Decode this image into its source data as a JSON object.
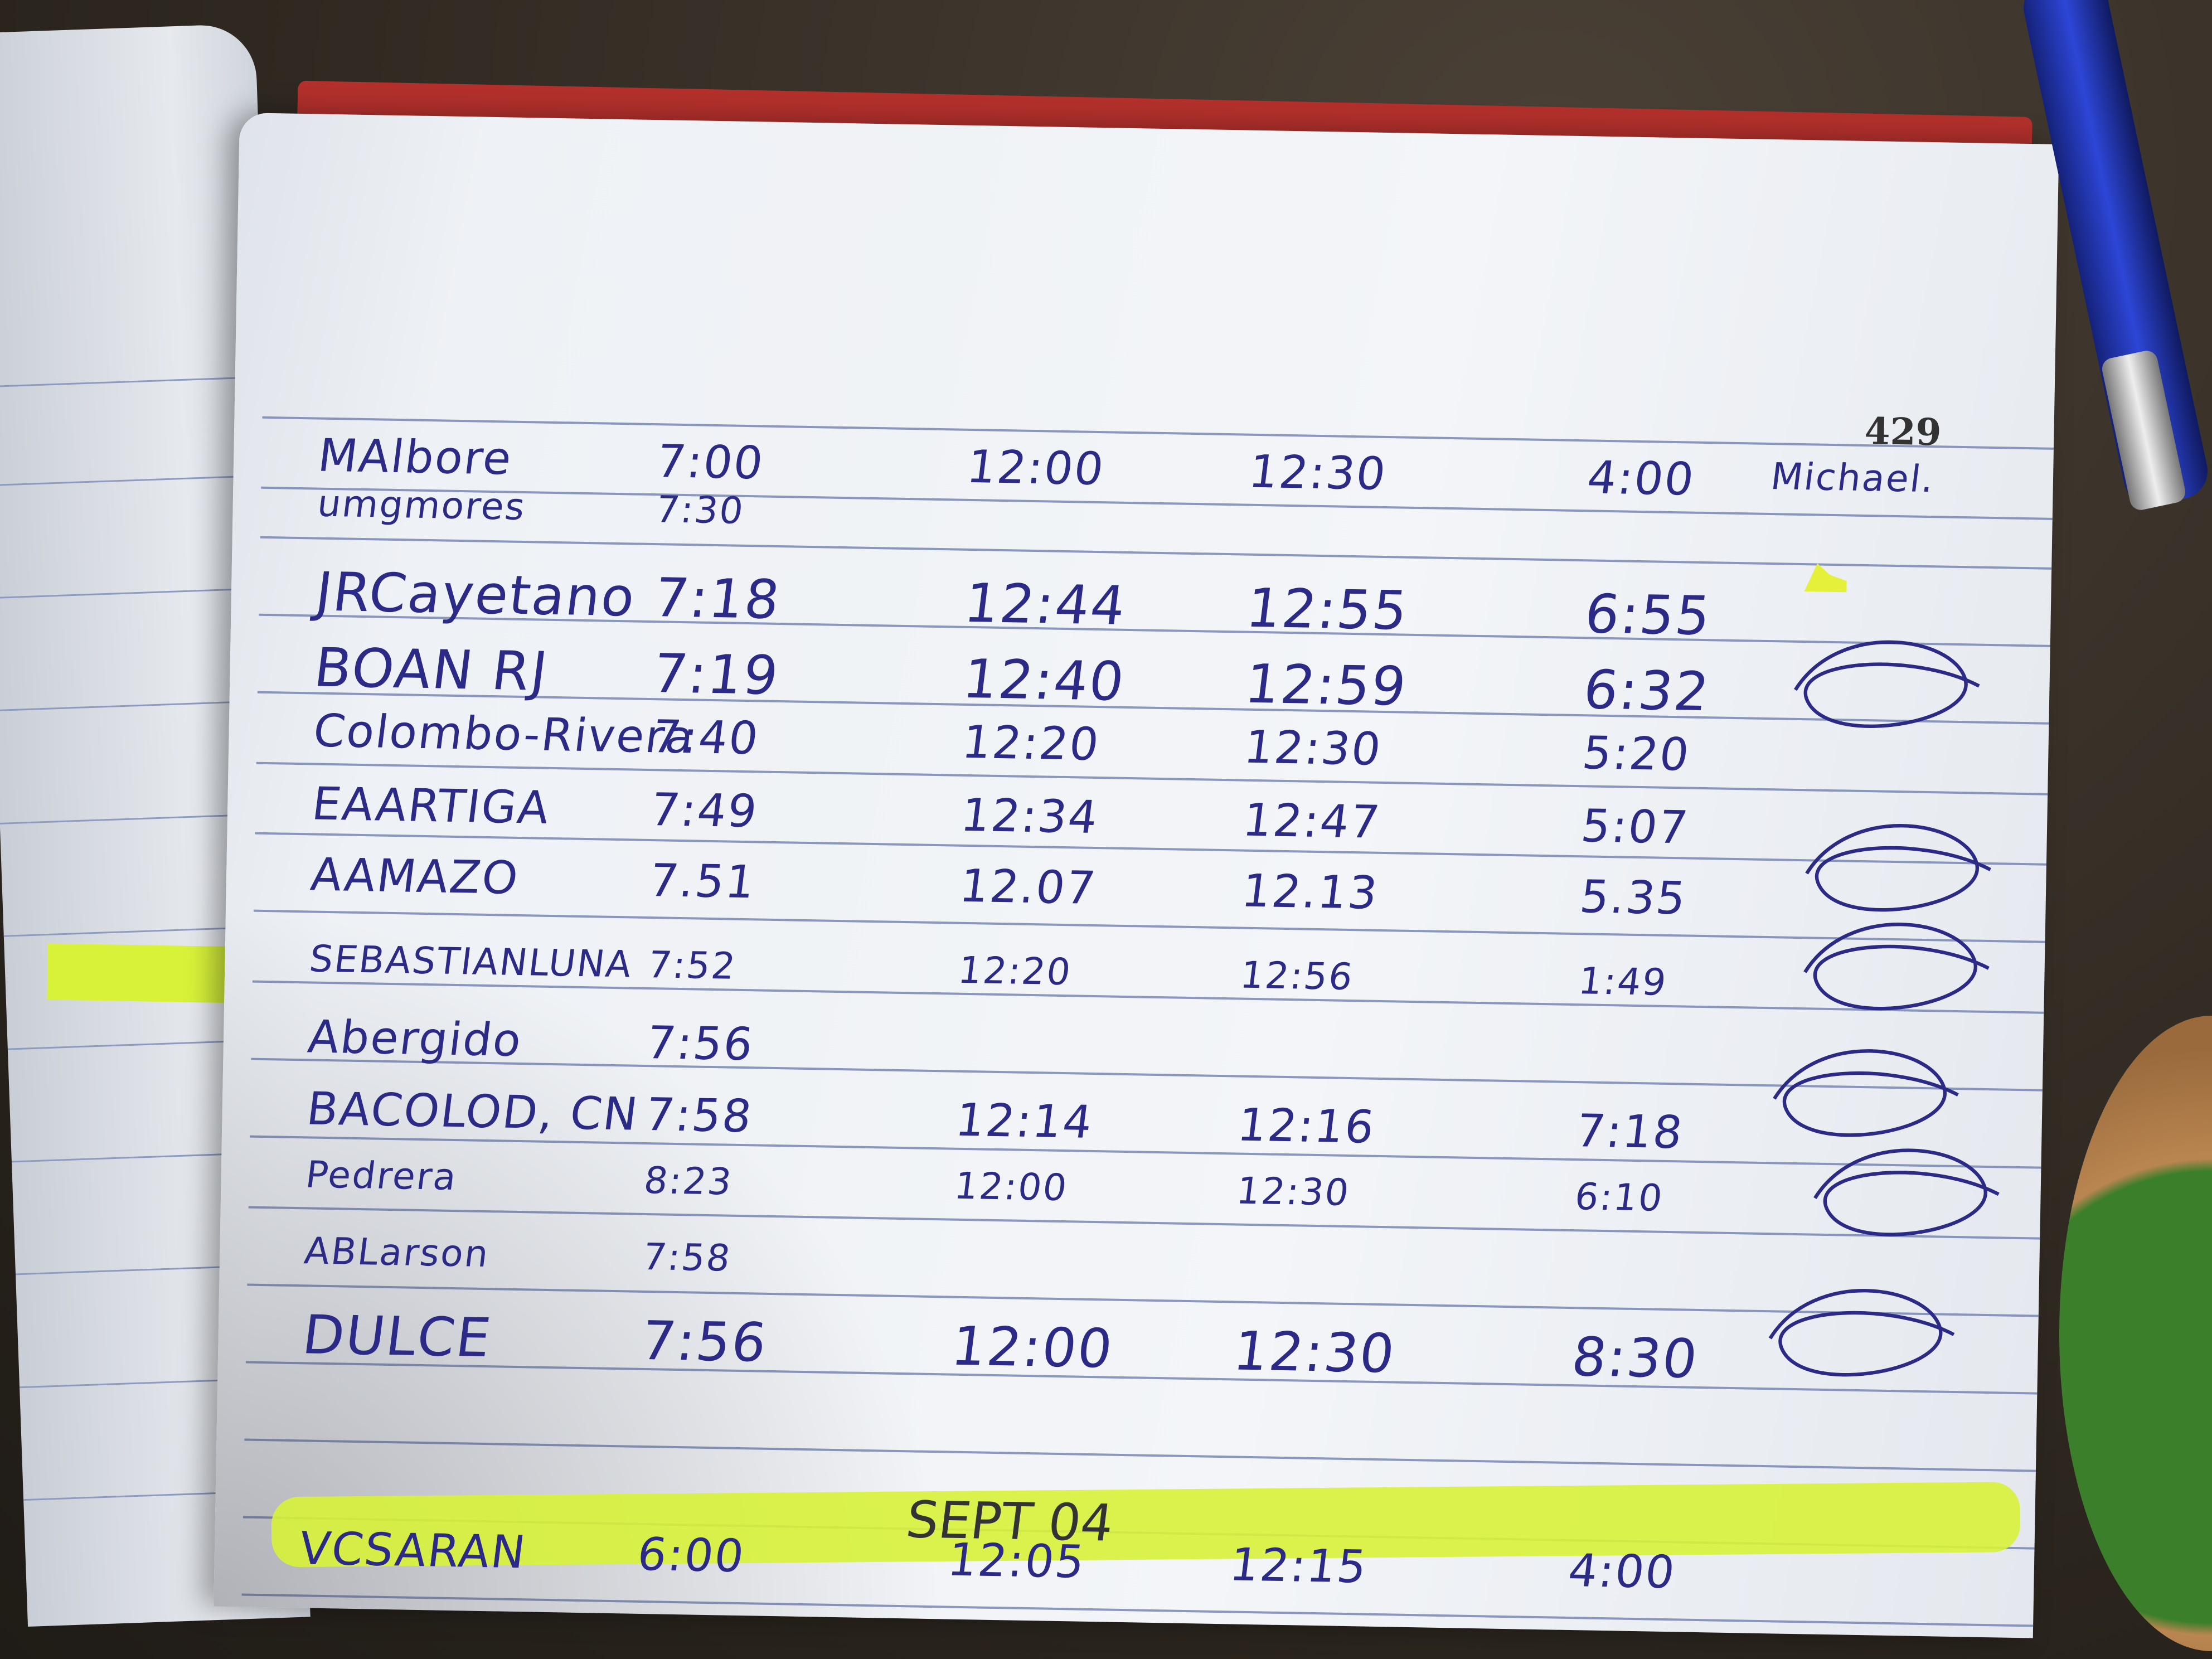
{
  "page_number": "429",
  "rows": [
    {
      "name": "MAlbore",
      "in": "7:00",
      "out_lunch": "12:00",
      "in_lunch": "12:30",
      "out": "4:00",
      "signature": "Michael."
    },
    {
      "name": "umgmores",
      "in": "7:30",
      "out_lunch": "",
      "in_lunch": "",
      "out": "",
      "signature": ""
    },
    {
      "name": "JRCayetano",
      "in": "7:18",
      "out_lunch": "12:44",
      "in_lunch": "12:55",
      "out": "6:55",
      "signature": ""
    },
    {
      "name": "BOAN RJ",
      "in": "7:19",
      "out_lunch": "12:40",
      "in_lunch": "12:59",
      "out": "6:32",
      "signature": ""
    },
    {
      "name": "Colombo-Rivera",
      "in": "7:40",
      "out_lunch": "12:20",
      "in_lunch": "12:30",
      "out": "5:20",
      "signature": ""
    },
    {
      "name": "EAARTIGA",
      "in": "7:49",
      "out_lunch": "12:34",
      "in_lunch": "12:47",
      "out": "5:07",
      "signature": ""
    },
    {
      "name": "AAMAZO",
      "in": "7.51",
      "out_lunch": "12.07",
      "in_lunch": "12.13",
      "out": "5.35",
      "signature": ""
    },
    {
      "name": "SEBASTIANLUNA",
      "in": "7:52",
      "out_lunch": "12:20",
      "in_lunch": "12:56",
      "out": "1:49",
      "signature": ""
    },
    {
      "name": "Abergido",
      "in": "7:56",
      "out_lunch": "",
      "in_lunch": "",
      "out": "",
      "signature": ""
    },
    {
      "name": "BACOLOD, CN",
      "in": "7:58",
      "out_lunch": "12:14",
      "in_lunch": "12:16",
      "out": "7:18",
      "signature": ""
    },
    {
      "name": "Pedrera",
      "in": "8:23",
      "out_lunch": "12:00",
      "in_lunch": "12:30",
      "out": "6:10",
      "signature": ""
    },
    {
      "name": "ABLarson",
      "in": "7:58",
      "out_lunch": "",
      "in_lunch": "",
      "out": "",
      "signature": ""
    },
    {
      "name": "DULCE",
      "in": "7:56",
      "out_lunch": "12:00",
      "in_lunch": "12:30",
      "out": "8:30",
      "signature": ""
    }
  ],
  "section_date": "SEPT 04",
  "next_rows": [
    {
      "name": "VCSARAN",
      "in": "6:00",
      "out_lunch": "12:05",
      "in_lunch": "12:15",
      "out": "4:00",
      "signature": ""
    }
  ],
  "colors": {
    "ink": "#2b2a86",
    "highlighter": "#d8f23a",
    "cover": "#b3302c"
  }
}
